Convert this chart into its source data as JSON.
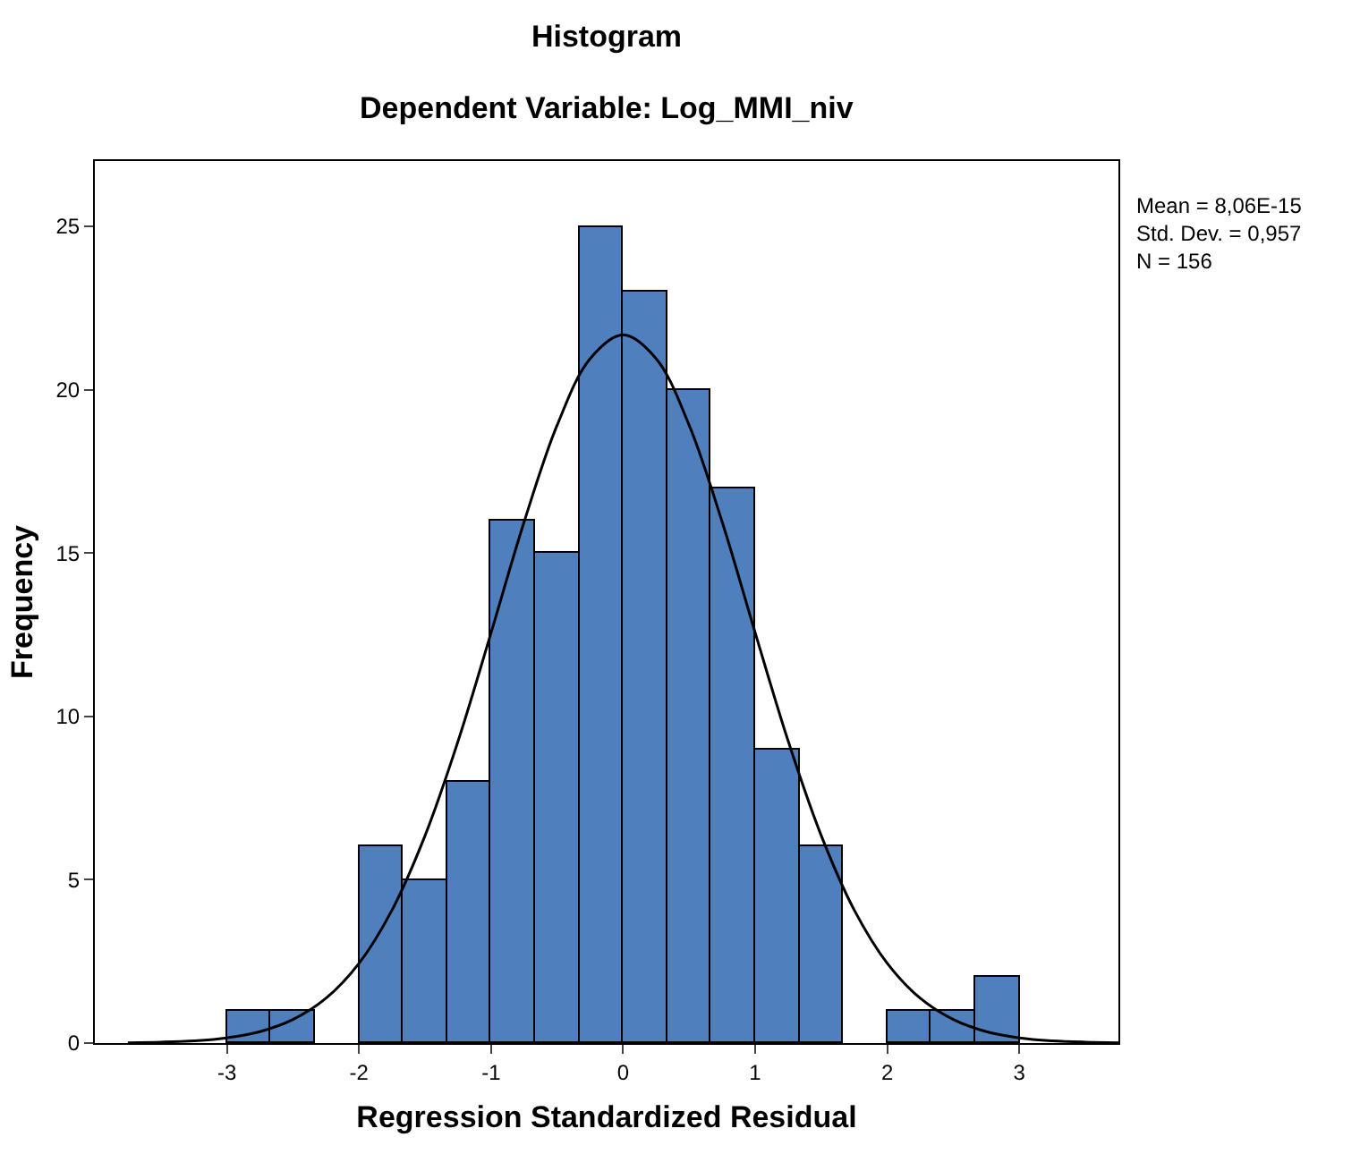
{
  "chart_data": {
    "type": "histogram",
    "title": "Histogram",
    "subtitle": "Dependent Variable: Log_MMI_niv",
    "xlabel": "Regression Standardized Residual",
    "ylabel": "Frequency",
    "bins": [
      -3,
      -2.667,
      -2.333,
      -2,
      -1.667,
      -1.333,
      -1,
      -0.667,
      -0.333,
      0,
      0.333,
      0.667,
      1,
      1.333,
      1.667,
      2,
      2.333,
      2.667,
      3
    ],
    "values": [
      1,
      1,
      0,
      6,
      5,
      8,
      16,
      15,
      25,
      23,
      20,
      17,
      9,
      6,
      0,
      1,
      1,
      2
    ],
    "color": "#4f7fbc",
    "series": [
      {
        "type": "line",
        "color": "#000000",
        "x": [
          -3.75,
          -3.5,
          -3.25,
          -3,
          -2.75,
          -2.5,
          -2.25,
          -2,
          -1.75,
          -1.5,
          -1.25,
          -1,
          -0.75,
          -0.5,
          -0.25,
          0,
          0.25,
          0.5,
          0.75,
          1,
          1.25,
          1.5,
          1.75,
          2,
          2.25,
          2.5,
          2.75,
          3,
          3.25,
          3.5,
          3.75
        ],
        "values": [
          0.01,
          0.03,
          0.07,
          0.16,
          0.35,
          0.72,
          1.37,
          2.44,
          4.07,
          6.35,
          9.24,
          12.56,
          15.95,
          18.91,
          20.95,
          21.68,
          20.95,
          18.91,
          15.95,
          12.56,
          9.24,
          6.35,
          4.07,
          2.44,
          1.37,
          0.72,
          0.35,
          0.16,
          0.07,
          0.03,
          0.01
        ]
      }
    ],
    "xlim": [
      -4,
      3.75
    ],
    "xticks": [
      -3,
      -2,
      -1,
      0,
      1,
      2,
      3
    ],
    "ylim": [
      0,
      27
    ],
    "yticks": [
      0,
      5,
      10,
      15,
      20,
      25
    ],
    "grid": false,
    "marker": "none",
    "line_style": "solid",
    "annotations": [
      "Mean = 8,06E-15",
      "Std. Dev. = 0,957",
      "N = 156"
    ]
  }
}
